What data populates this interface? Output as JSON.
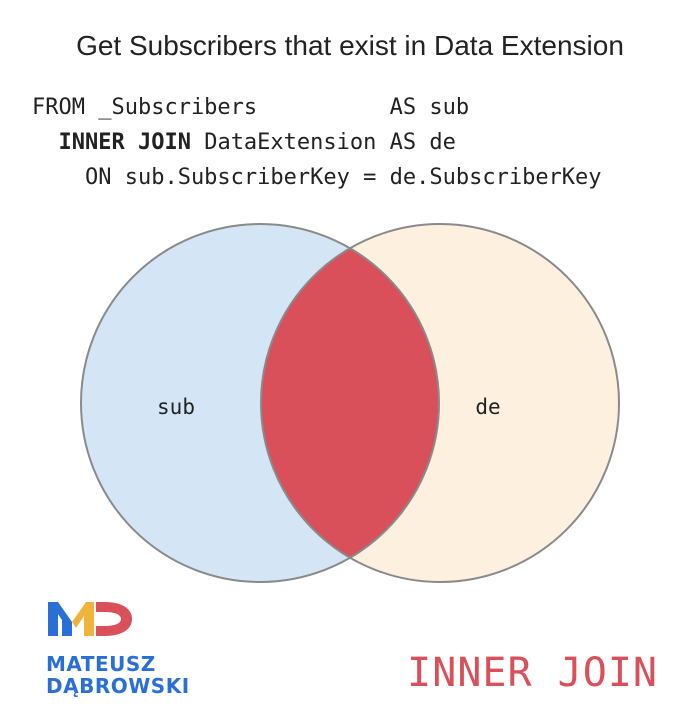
{
  "title": "Get Subscribers that exist in Data Extension",
  "query": {
    "line1": "FROM _Subscribers          AS sub",
    "line2_indent": "  ",
    "line2_keyword": "INNER JOIN",
    "line2_rest": " DataExtension AS de",
    "line3": "    ON sub.SubscriberKey = de.SubscriberKey"
  },
  "venn": {
    "left_label": "sub",
    "right_label": "de",
    "left_color": "#d4e5f6",
    "right_color": "#fdf0de",
    "intersection_color": "#d9505a",
    "outline_color": "#8a8a8a"
  },
  "logo": {
    "line1": "MATEUSZ",
    "line2": "DĄBROWSKI",
    "colors": [
      "#2a6fd6",
      "#f0b43c",
      "#d9505a"
    ]
  },
  "join_type": "INNER JOIN"
}
